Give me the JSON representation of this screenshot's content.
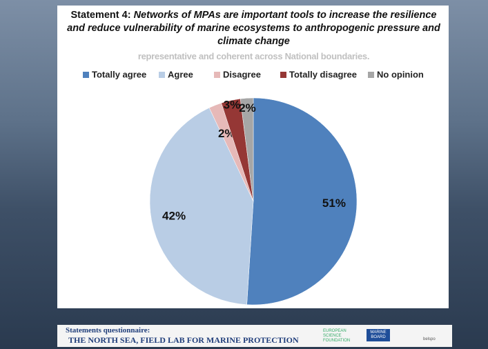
{
  "chart_data": {
    "type": "pie",
    "title_prefix": "Statement 4:",
    "title": "Networks of MPAs are important tools to increase the resilience and reduce vulnerability of marine ecosystems to anthropogenic pressure  and climate change",
    "overlay_text": "representative and coherent across National boundaries.",
    "categories": [
      "Totally agree",
      "Agree",
      "Disagree",
      "Totally disagree",
      "No opinion"
    ],
    "values": [
      51,
      42,
      2,
      3,
      2
    ],
    "value_labels": [
      "51%",
      "42%",
      "2%",
      "3%",
      "2%"
    ],
    "colors": [
      "#4f81bd",
      "#b9cde5",
      "#e6b9b8",
      "#953735",
      "#a6a6a6"
    ]
  },
  "footer": {
    "heading": "Statements questionnaire:",
    "subtitle": "THE NORTH SEA, FIELD LAB FOR MARINE PROTECTION",
    "logos": [
      "EUROPEAN SCIENCE FOUNDATION",
      "MARINE BOARD",
      "belspo"
    ]
  }
}
